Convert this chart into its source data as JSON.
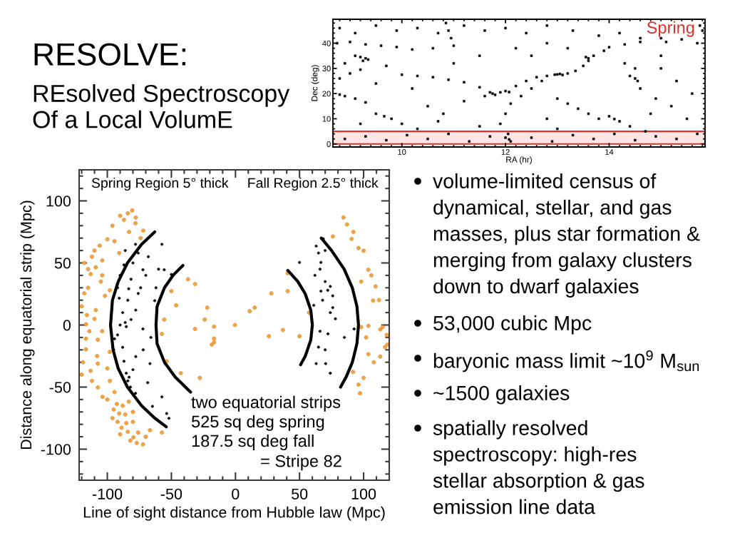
{
  "chart_data": [
    {
      "type": "other",
      "title": "RESOLVE:",
      "subtitle": "REsolved Spectroscopy\nOf a Local VolumE"
    },
    {
      "type": "scatter",
      "xlabel": "RA (hr)",
      "ylabel": "Dec (deg)",
      "xlim": [
        8.67,
        15.85
      ],
      "ylim": [
        -1.2,
        49.5
      ],
      "xticks": [
        10,
        12,
        14
      ],
      "yticks": [
        0,
        10,
        20,
        30,
        40
      ],
      "marker": "square",
      "annotations": [
        "Spring"
      ],
      "bands": [
        {
          "axis": "y",
          "from": 0,
          "to": 5,
          "color": "#e0302a"
        }
      ],
      "series": [
        {
          "color": "#000000",
          "x": [
            8.8,
            9.1,
            9.5,
            9.9,
            10.3,
            10.7,
            11.2,
            11.6,
            12.0,
            12.4,
            12.8,
            13.3,
            13.8,
            14.2,
            14.6,
            15.1,
            15.75,
            15.7,
            8.75,
            9.0,
            9.3,
            9.6,
            9.9,
            10.2,
            10.6,
            9.2,
            9.3,
            9.35,
            9.25,
            9.1,
            9.2,
            9.0,
            8.8,
            8.8,
            8.9,
            9.1,
            9.3,
            10.0,
            10.3,
            10.6,
            10.9,
            11.2,
            11.5,
            11.7,
            11.75,
            11.8,
            11.9,
            12.07,
            12.0,
            11.6,
            10.85,
            10.9,
            10.95,
            11.0,
            12.2,
            12.4,
            12.6,
            12.8,
            12.95,
            13.0,
            13.05,
            13.1,
            13.2,
            13.35,
            13.5,
            13.6,
            13.6,
            13.55,
            13.7,
            13.9,
            14.0,
            14.3,
            14.6,
            15.0,
            15.4,
            15.8,
            14.5,
            14.4,
            14.55,
            14.6,
            14.5,
            14.3,
            12.7,
            12.5,
            12.3,
            12.1,
            12.0,
            11.9,
            12.05,
            12.07,
            12.1,
            12.0,
            13.4,
            13.6,
            13.8,
            14.1,
            14.0,
            14.2,
            14.4,
            14.7,
            13.2,
            13.0,
            9.66,
            9.5,
            9.8,
            10.0,
            10.3,
            9.2,
            8.9,
            9.3,
            9.7,
            10.1,
            10.5,
            10.9,
            11.3,
            11.7,
            12.5,
            12.9,
            13.3,
            13.7,
            14.1,
            14.5,
            14.9,
            15.3,
            15.7,
            10.5,
            10.8,
            11.2,
            11.0,
            11.5,
            12.5,
            12.2,
            12.8,
            13.2,
            15.0,
            15.3,
            15.6,
            15.2,
            15.5,
            14.9,
            10.2,
            9.5,
            8.9,
            9.7,
            12.8,
            13.0,
            11.5,
            10.7,
            15.0,
            14.8
          ],
          "values": [
            46,
            44,
            47,
            45,
            46,
            44,
            47,
            45,
            46,
            44,
            47,
            45,
            43,
            44,
            42,
            40.5,
            47,
            40,
            40,
            40.5,
            39.5,
            39,
            38.5,
            37.5,
            38,
            34.5,
            34,
            33.5,
            33,
            35,
            29.5,
            28,
            26,
            19.6,
            19,
            18,
            16.5,
            27.5,
            27,
            26.5,
            25.5,
            24.5,
            22.5,
            20.5,
            20,
            19.5,
            20.5,
            20.6,
            21,
            19,
            48,
            45,
            42,
            39,
            23,
            25,
            26.5,
            27,
            27.5,
            27.6,
            27.8,
            27.4,
            28,
            29,
            31,
            33,
            34,
            34.5,
            35,
            37,
            38.4,
            39.5,
            40.5,
            42,
            41.5,
            45,
            26,
            27,
            25,
            22,
            30,
            32,
            25,
            22,
            19,
            16,
            12,
            8,
            4,
            1.8,
            1,
            2.5,
            14,
            12,
            10,
            9.9,
            11,
            9,
            7,
            5,
            16,
            18,
            11,
            12,
            10,
            8,
            6,
            8,
            2,
            3,
            1.5,
            3.5,
            2,
            4,
            1,
            3,
            2.5,
            1,
            3.5,
            2,
            4,
            1.5,
            3,
            2,
            4,
            15,
            12,
            17,
            32,
            35,
            35,
            38,
            40,
            38,
            30,
            25,
            20,
            15,
            10,
            18,
            22,
            24,
            32,
            31,
            10,
            6,
            7,
            9,
            35,
            12
          ]
        }
      ]
    },
    {
      "type": "scatter",
      "xlabel": "Line of sight distance from Hubble law (Mpc)",
      "ylabel": "Distance along equatorial strip (Mpc)",
      "xlim": [
        -122,
        120
      ],
      "ylim": [
        -125,
        125
      ],
      "xticks": [
        -100,
        -50,
        0,
        50,
        100
      ],
      "yticks": [
        -100,
        -50,
        0,
        50,
        100
      ],
      "marker": "circle",
      "annotations": [
        "Spring Region 5° thick",
        "Fall Region 2.5° thick",
        "two equatorial strips\n525 sq deg spring\n187.5 sq deg fall",
        "= Stripe 82"
      ],
      "series": [
        {
          "color": "#f4a340",
          "x": [
            -80.6,
            -77.8,
            -87,
            -72,
            -94.4,
            -100,
            -83,
            -90.7,
            -109,
            -113,
            -105,
            -118,
            -101.8,
            -109,
            -116.7,
            -107.4,
            -116.7,
            -113,
            -107.4,
            -100,
            -107.4,
            -103.7,
            -92.6,
            -90.7,
            -85.2,
            -88.9,
            -79.6,
            -72.2,
            -75.9,
            -83.3,
            -94.4,
            -66.7,
            -57.4,
            -116.7,
            -98.1,
            -112,
            -104,
            -115,
            -110,
            -104,
            -119,
            -96,
            -82,
            -90,
            -80,
            -98,
            -108,
            -118,
            -115,
            -110,
            -106,
            -96,
            -90,
            -84,
            -78,
            -74,
            -120,
            -114,
            -112,
            -100,
            -95,
            -86,
            -92,
            -84,
            -77,
            -70,
            -80,
            -88,
            -120,
            -116,
            -104,
            -98,
            -37,
            -31.5,
            -50,
            -46.3,
            -22,
            -24,
            -16.7,
            -31.5,
            -0.4,
            -16.7,
            -55.6,
            -57.4,
            -18.5,
            -16.7,
            -27.8,
            -42.6,
            -53.7,
            15,
            28,
            40.7,
            26.1,
            37,
            50,
            57.4,
            40.7,
            11.1,
            84.3,
            87,
            76,
            90.7,
            100,
            103.7,
            98.1,
            109.3,
            107.4,
            103.7,
            113,
            114.8,
            98.1,
            103.7,
            113,
            116.7,
            100,
            97.2,
            91.7,
            118.5,
            92,
            96,
            106,
            112,
            118,
            108,
            96,
            102
          ],
          "values": [
            92.3,
            86.6,
            84.7,
            76,
            67.5,
            69,
            75,
            58,
            46.5,
            41,
            35,
            25.5,
            23.5,
            12,
            0.6,
            -11.9,
            -11,
            -36.9,
            -31.1,
            -35,
            -50.3,
            -57.9,
            -63.6,
            -71.3,
            -79,
            -82.7,
            -90.4,
            -96.1,
            -86.6,
            -61.7,
            -54,
            -84.7,
            -86.6,
            -19.6,
            -21.6,
            55,
            52,
            30,
            5,
            -5,
            -30,
            -75,
            -93,
            -88,
            -70,
            -45,
            -25,
            50,
            45,
            60,
            64,
            80,
            88,
            90,
            82,
            70,
            15,
            -5,
            -45,
            -60,
            -68,
            -72,
            -78,
            -86,
            -95,
            -90,
            -78,
            -65,
            -40,
            8,
            40,
            28,
            36.9,
            33,
            27.3,
            15.9,
            14,
            4.4,
            -1.3,
            -3.2,
            0,
            -10.9,
            4.4,
            -7.1,
            -15.8,
            -13.9,
            -42.6,
            -38.8,
            -29.2,
            14,
            25.5,
            27.3,
            -9,
            -4,
            -9,
            10,
            41.7,
            11.1,
            86.6,
            81,
            71.3,
            69.4,
            59.8,
            44.5,
            35,
            31.1,
            19.6,
            -0.7,
            -3.6,
            -1.7,
            -1.7,
            -23.5,
            -25.4,
            -17.8,
            -42.6,
            -55,
            -37.8,
            -15.8,
            75,
            62,
            40,
            20,
            -8,
            -30,
            -48,
            -10
          ]
        },
        {
          "color": "#000000",
          "x": [
            -75.9,
            -81.5,
            -72.2,
            -57.4,
            -55.6,
            -50,
            -90.7,
            -75.9,
            -85.2,
            -81.5,
            -94.4,
            -77.8,
            -63,
            -83.3,
            -87,
            -72.2,
            -87,
            -85.2,
            -77.8,
            -66.7,
            -68.5,
            -57.4,
            -64.8,
            -53.7,
            -51.9,
            -88,
            -90,
            -86,
            -84,
            -83,
            -80,
            -92,
            -78,
            -70,
            -60,
            -95,
            -92,
            -88,
            -84,
            -80,
            -74,
            -68,
            -62,
            -66,
            -90,
            -86,
            -82,
            -78,
            -72,
            68.5,
            64.8,
            66.7,
            63,
            74,
            75.9,
            66.7,
            75.9,
            61.1,
            92.6,
            72.2,
            50,
            64.8,
            63,
            74,
            70.4,
            70,
            72,
            68,
            78,
            85,
            66,
            70,
            62,
            74,
            66,
            70
          ],
          "values": [
            58,
            36.9,
            44.5,
            65,
            44.5,
            40.7,
            21.6,
            25.4,
            -1.3,
            4.4,
            -11.1,
            12,
            19.6,
            29.2,
            48.4,
            -3.2,
            -29.2,
            -38.8,
            -25.4,
            -31.1,
            -46.4,
            -57.9,
            -65.5,
            -71.3,
            -75.1,
            10,
            0,
            2,
            -45,
            -42,
            -36,
            30,
            65,
            40,
            45,
            -20,
            -8,
            -18,
            20,
            50,
            30,
            55,
            30,
            -10,
            40,
            60,
            -50,
            -55,
            -20,
            69.4,
            58,
            50.4,
            63.6,
            31.1,
            23.5,
            27.3,
            14,
            15.9,
            -3.2,
            -7.1,
            50.4,
            -17.8,
            -31.1,
            -38.8,
            -31.1,
            35,
            28,
            20,
            5,
            -10,
            45,
            60,
            40,
            10,
            -5,
            -20
          ]
        },
        {
          "type": "line",
          "marker": "none",
          "color": "#000000",
          "x": [
            -63,
            -73.3,
            -84.3,
            -91.5,
            -96,
            -97.5,
            -95.5,
            -91.5,
            -84.3,
            -73.3,
            -63,
            -54
          ],
          "values": [
            75,
            65,
            50,
            35,
            20,
            0,
            -20,
            -35,
            -50,
            -65,
            -75,
            -82
          ]
        },
        {
          "type": "line",
          "marker": "none",
          "color": "#000000",
          "x": [
            -41,
            -48.7,
            -55.4,
            -61.2,
            -62,
            -61.2,
            -55.4,
            -47,
            -35
          ],
          "values": [
            48,
            40,
            30,
            15,
            0,
            -15,
            -30,
            -42,
            -54
          ]
        },
        {
          "type": "line",
          "marker": "none",
          "color": "#000000",
          "x": [
            40.8,
            48.7,
            54.5,
            58.8,
            60,
            58.8,
            54.5,
            50.8
          ],
          "values": [
            44,
            35,
            25,
            12,
            0,
            -12,
            -25,
            -32
          ]
        },
        {
          "type": "line",
          "marker": "none",
          "color": "#000000",
          "x": [
            67,
            75,
            84.8,
            91.2,
            94.8,
            96,
            94.8,
            91.2,
            86.3,
            82
          ],
          "values": [
            70,
            60,
            45,
            30,
            15,
            0,
            -15,
            -30,
            -42,
            -50
          ]
        }
      ]
    },
    {
      "type": "other",
      "annotations": [
        "volume-limited census of\ndynamical, stellar, and gas\nmasses, plus star formation &\nmerging from galaxy clusters\ndown to dwarf galaxies",
        "53,000 cubic Mpc",
        "baryonic mass limit ~10$^{9}$ M$_{sun}$",
        "~1500 galaxies",
        "spatially resolved\nspectroscopy: high-res\nstellar absorption & gas\nemission line data"
      ]
    }
  ]
}
